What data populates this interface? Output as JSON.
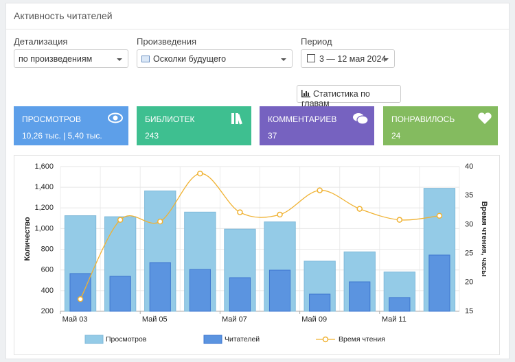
{
  "header": {
    "title": "Активность читателей"
  },
  "filters": [
    {
      "label": "Детализация",
      "value": "по произведениям"
    },
    {
      "label": "Произведения",
      "value": "Осколки будущего"
    },
    {
      "label": "Период",
      "value": "3 — 12 мая 2024"
    }
  ],
  "button": "Статистика по главам",
  "cards": [
    {
      "title": "ПРОСМОТРОВ",
      "value": "10,26 тыс. | 5,40 тыс.",
      "color": "#5d9fe9"
    },
    {
      "title": "БИБЛИОТЕК",
      "value": 243,
      "color": "#3ebf90"
    },
    {
      "title": "КОММЕНТАРИЕВ",
      "value": 37,
      "color": "#7662c0"
    },
    {
      "title": "ПОНРАВИЛОСЬ",
      "value": 24,
      "color": "#84bb5f"
    }
  ],
  "chart_data": {
    "type": "bar-line",
    "categories": [
      "Май 03",
      null,
      "Май 05",
      null,
      "Май 07",
      null,
      "Май 09",
      null,
      "Май 11",
      null
    ],
    "series": [
      {
        "name": "Просмотров",
        "type": "bar",
        "color": "#94cbe7",
        "values": [
          1125,
          1115,
          1365,
          1160,
          995,
          1065,
          685,
          775,
          580,
          1390
        ]
      },
      {
        "name": "Читателей",
        "type": "bar",
        "color": "#5b94e0",
        "values": [
          565,
          538,
          671,
          605,
          525,
          598,
          366,
          485,
          333,
          744
        ]
      },
      {
        "name": "Время чтения",
        "type": "line",
        "axis": "y2",
        "color": "#f0b232",
        "values": [
          17.1,
          30.8,
          30.5,
          38.8,
          32.1,
          31.7,
          35.9,
          32.7,
          30.8,
          31.5
        ]
      }
    ],
    "ylabel": "Количество",
    "y2label": "Время чтения, часы",
    "ylim": [
      200,
      1600
    ],
    "yticks": [
      200,
      400,
      600,
      800,
      {
        "value": 1000,
        "label": "1,000"
      },
      {
        "value": 1200,
        "label": "1,200"
      },
      {
        "value": 1400,
        "label": "1,400"
      },
      {
        "value": 1600,
        "label": "1,600"
      }
    ],
    "y2lim": [
      15,
      40
    ],
    "y2ticks": [
      15,
      20,
      25,
      30,
      35,
      40
    ],
    "grid": true
  }
}
